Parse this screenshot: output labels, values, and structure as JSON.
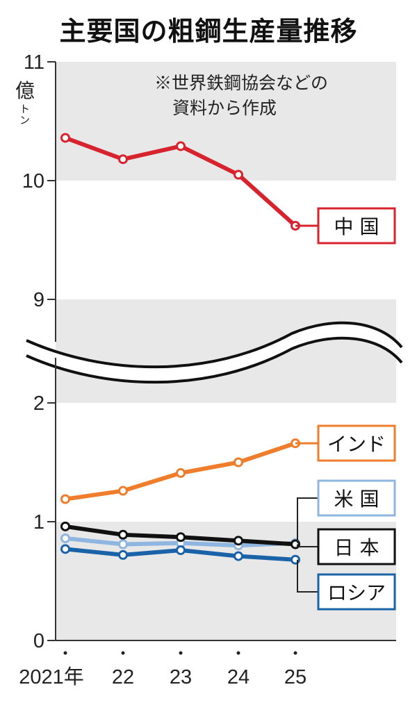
{
  "title": "主要国の粗鋼生産量推移",
  "note_lines": [
    "※世界鉄鋼協会などの",
    "資料から作成"
  ],
  "chart_data": {
    "type": "line",
    "title": "主要国の粗鋼生産量推移",
    "ylabel": "億トン",
    "y_unit_main": "億",
    "y_unit_sub": "トン",
    "x": [
      "2021年",
      "22",
      "23",
      "24",
      "25"
    ],
    "axis_break": {
      "from": 2,
      "to": 9
    },
    "ylim": [
      0,
      11
    ],
    "y_ticks": [
      0,
      1,
      2,
      9,
      10,
      11
    ],
    "y_tick_labels": [
      "0",
      "1",
      "2",
      "9",
      "10",
      "11"
    ],
    "series": [
      {
        "name": "中 国",
        "color": "#d7232e",
        "values": [
          10.36,
          10.18,
          10.29,
          10.05,
          9.62
        ]
      },
      {
        "name": "インド",
        "color": "#ef7d2b",
        "values": [
          1.19,
          1.26,
          1.41,
          1.5,
          1.66
        ]
      },
      {
        "name": "米 国",
        "color": "#8fb6e0",
        "values": [
          0.86,
          0.81,
          0.82,
          0.8,
          0.82
        ]
      },
      {
        "name": "日 本",
        "color": "#111111",
        "values": [
          0.96,
          0.89,
          0.87,
          0.84,
          0.81
        ]
      },
      {
        "name": "ロシア",
        "color": "#1b63a8",
        "values": [
          0.77,
          0.72,
          0.76,
          0.71,
          0.68
        ]
      }
    ],
    "grid": true,
    "legend_placement": "right"
  }
}
